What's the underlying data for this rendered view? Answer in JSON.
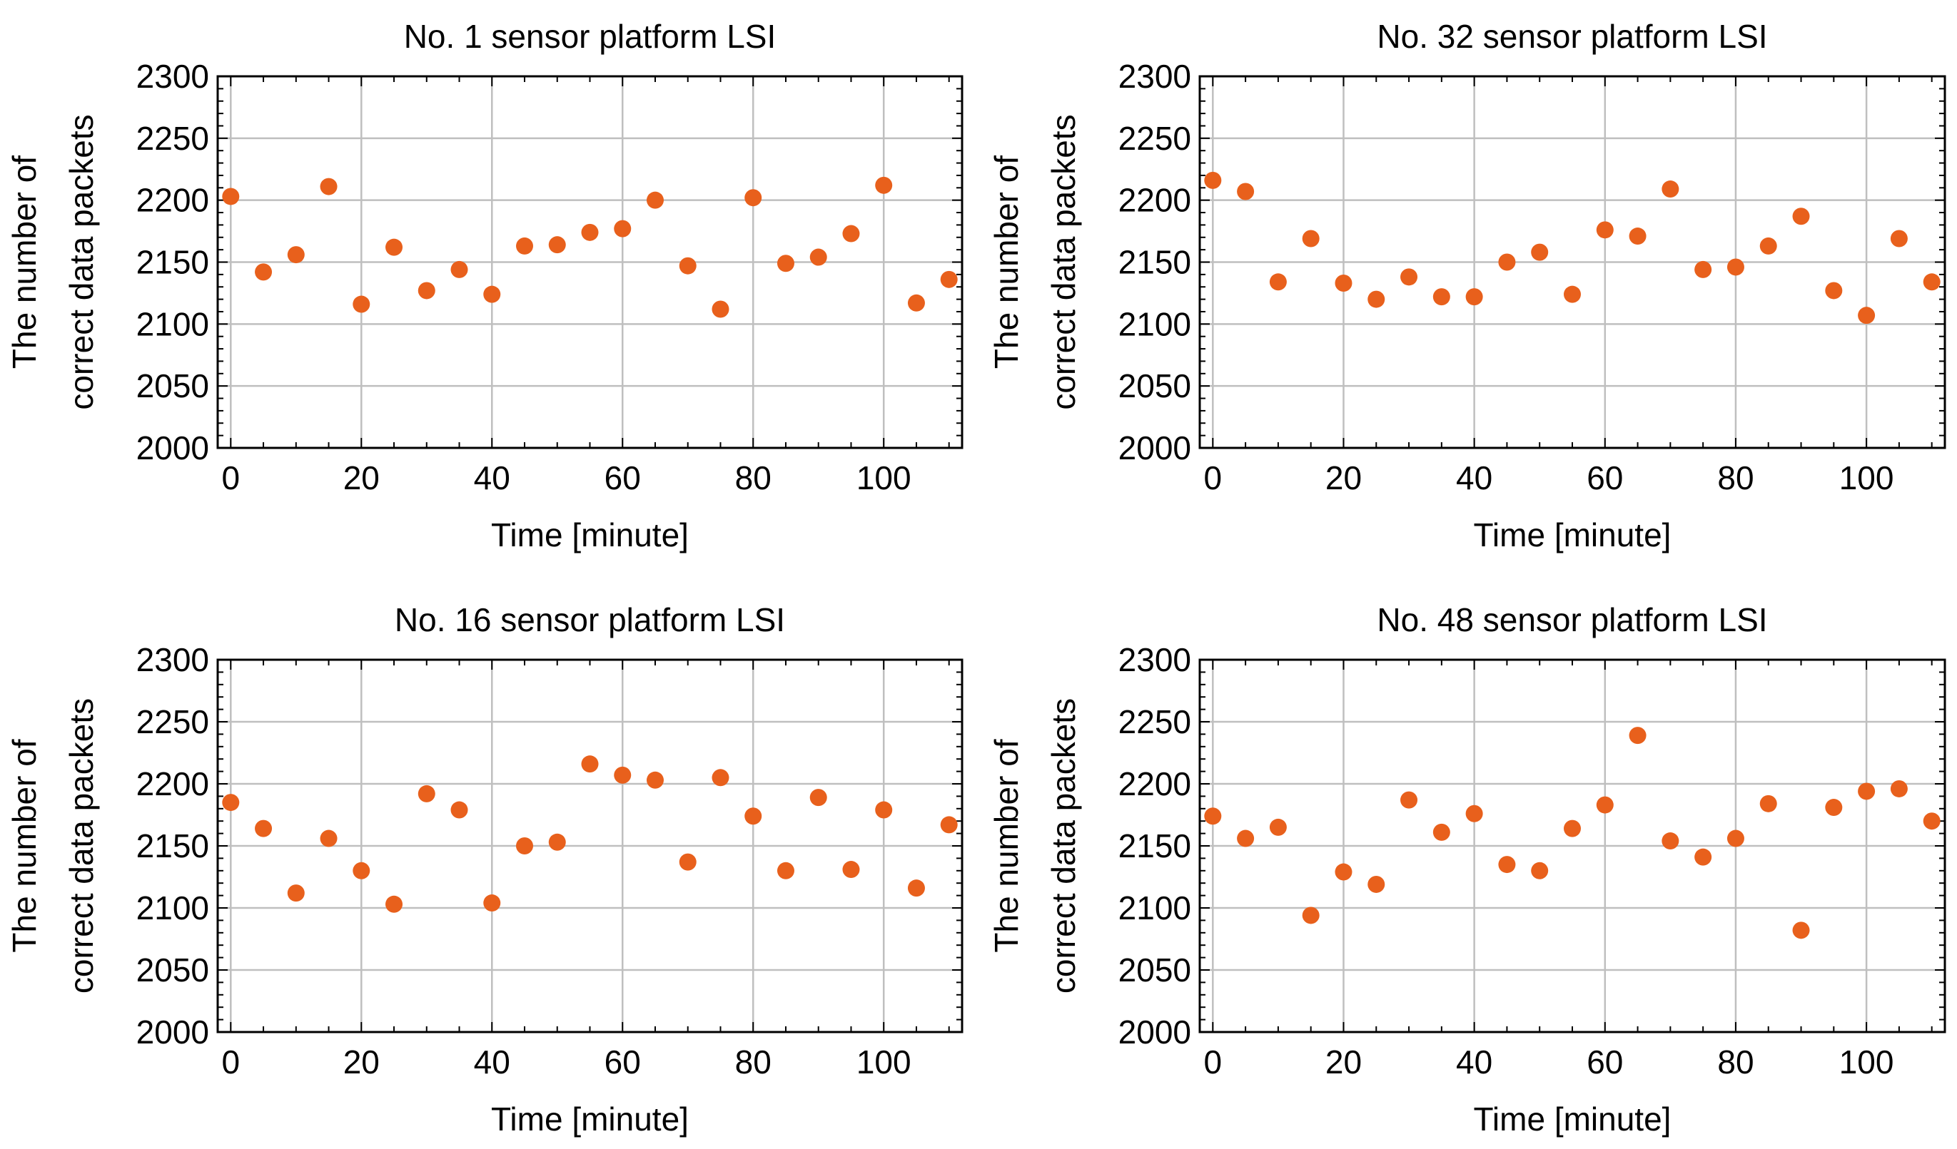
{
  "chart_data": [
    {
      "type": "scatter",
      "title": "No. 1 sensor platform LSI",
      "xlabel": "Time [minute]",
      "ylabel": [
        "The number of",
        "correct data packets"
      ],
      "xlim": [
        -2,
        112
      ],
      "ylim": [
        2000,
        2300
      ],
      "xticks": [
        0,
        20,
        40,
        60,
        80,
        100
      ],
      "yticks": [
        2000,
        2050,
        2100,
        2150,
        2200,
        2250,
        2300
      ],
      "grid": true,
      "marker_color": "#e8601c",
      "x": [
        0,
        5,
        10,
        15,
        20,
        25,
        30,
        35,
        40,
        45,
        50,
        55,
        60,
        65,
        70,
        75,
        80,
        85,
        90,
        95,
        100,
        105,
        110
      ],
      "y": [
        2203,
        2142,
        2156,
        2211,
        2116,
        2162,
        2127,
        2144,
        2124,
        2163,
        2164,
        2174,
        2177,
        2200,
        2147,
        2112,
        2202,
        2149,
        2154,
        2173,
        2212,
        2117,
        2136
      ]
    },
    {
      "type": "scatter",
      "title": "No. 32 sensor platform LSI",
      "xlabel": "Time [minute]",
      "ylabel": [
        "The number of",
        "correct data packets"
      ],
      "xlim": [
        -2,
        112
      ],
      "ylim": [
        2000,
        2300
      ],
      "xticks": [
        0,
        20,
        40,
        60,
        80,
        100
      ],
      "yticks": [
        2000,
        2050,
        2100,
        2150,
        2200,
        2250,
        2300
      ],
      "grid": true,
      "marker_color": "#e8601c",
      "x": [
        0,
        5,
        10,
        15,
        20,
        25,
        30,
        35,
        40,
        45,
        50,
        55,
        60,
        65,
        70,
        75,
        80,
        85,
        90,
        95,
        100,
        105,
        110
      ],
      "y": [
        2216,
        2207,
        2134,
        2169,
        2133,
        2120,
        2138,
        2122,
        2122,
        2150,
        2158,
        2124,
        2176,
        2171,
        2209,
        2144,
        2146,
        2163,
        2187,
        2127,
        2107,
        2169,
        2134
      ]
    },
    {
      "type": "scatter",
      "title": "No. 16 sensor platform LSI",
      "xlabel": "Time [minute]",
      "ylabel": [
        "The number of",
        "correct data packets"
      ],
      "xlim": [
        -2,
        112
      ],
      "ylim": [
        2000,
        2300
      ],
      "xticks": [
        0,
        20,
        40,
        60,
        80,
        100
      ],
      "yticks": [
        2000,
        2050,
        2100,
        2150,
        2200,
        2250,
        2300
      ],
      "grid": true,
      "marker_color": "#e8601c",
      "x": [
        0,
        5,
        10,
        15,
        20,
        25,
        30,
        35,
        40,
        45,
        50,
        55,
        60,
        65,
        70,
        75,
        80,
        85,
        90,
        95,
        100,
        105,
        110
      ],
      "y": [
        2185,
        2164,
        2112,
        2156,
        2130,
        2103,
        2192,
        2179,
        2104,
        2150,
        2153,
        2216,
        2207,
        2203,
        2137,
        2205,
        2174,
        2130,
        2189,
        2131,
        2179,
        2116,
        2167
      ]
    },
    {
      "type": "scatter",
      "title": "No. 48 sensor platform LSI",
      "xlabel": "Time [minute]",
      "ylabel": [
        "The number of",
        "correct data packets"
      ],
      "xlim": [
        -2,
        112
      ],
      "ylim": [
        2000,
        2300
      ],
      "xticks": [
        0,
        20,
        40,
        60,
        80,
        100
      ],
      "yticks": [
        2000,
        2050,
        2100,
        2150,
        2200,
        2250,
        2300
      ],
      "grid": true,
      "marker_color": "#e8601c",
      "x": [
        0,
        5,
        10,
        15,
        20,
        25,
        30,
        35,
        40,
        45,
        50,
        55,
        60,
        65,
        70,
        75,
        80,
        85,
        90,
        95,
        100,
        105,
        110
      ],
      "y": [
        2174,
        2156,
        2165,
        2094,
        2129,
        2119,
        2187,
        2161,
        2176,
        2135,
        2130,
        2164,
        2183,
        2239,
        2154,
        2141,
        2156,
        2184,
        2082,
        2181,
        2194,
        2196,
        2170
      ]
    }
  ]
}
